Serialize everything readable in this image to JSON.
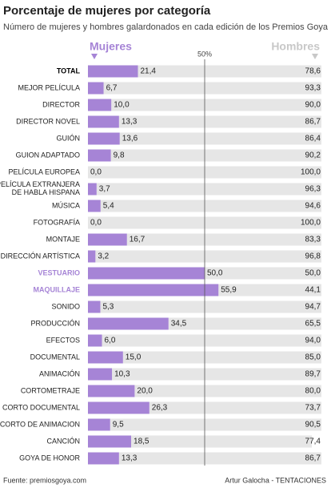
{
  "chart_data": {
    "type": "stacked-bar-horizontal",
    "title": "Porcentaje de mujeres por categoría",
    "subtitle": "Número de mujeres y hombres galardonados en cada edición de los Premios Goya",
    "source": "Fuente: premiosgoya.com",
    "credit": "Artur Galocha - TENTACIONES",
    "categories": [
      "TOTAL",
      "MEJOR PELÍCULA",
      "DIRECTOR",
      "DIRECTOR NOVEL",
      "GUIÓN",
      "GUION ADAPTADO",
      "PELÍCULA EUROPEA",
      "PELÍCULA EXTRANJERA DE HABLA HISPANA",
      "MÚSICA",
      "FOTOGRAFÍA",
      "MONTAJE",
      "DIRECCIÓN ARTÍSTICA",
      "VESTUARIO",
      "MAQUILLAJE",
      "SONIDO",
      "PRODUCCIÓN",
      "EFECTOS",
      "DOCUMENTAL",
      "ANIMACIÓN",
      "CORTOMETRAJE",
      "CORTO DOCUMENTAL",
      "CORTO DE ANIMACION",
      "CANCIÓN",
      "GOYA DE HONOR"
    ],
    "series": [
      {
        "name": "Mujeres",
        "color": "#a684d6",
        "values": [
          21.4,
          6.7,
          10.0,
          13.3,
          13.6,
          9.8,
          0.0,
          3.7,
          5.4,
          0.0,
          16.7,
          3.2,
          50.0,
          55.9,
          5.3,
          34.5,
          6.0,
          15.0,
          10.3,
          20.0,
          26.3,
          9.5,
          18.5,
          13.3
        ],
        "value_labels": [
          "21,4",
          "6,7",
          "10,0",
          "13,3",
          "13,6",
          "9,8",
          "0,0",
          "3,7",
          "5,4",
          "0,0",
          "16,7",
          "3,2",
          "50,0",
          "55,9",
          "5,3",
          "34,5",
          "6,0",
          "15,0",
          "10,3",
          "20,0",
          "26,3",
          "9,5",
          "18,5",
          "13,3"
        ]
      },
      {
        "name": "Hombres",
        "color": "#e6e6e6",
        "values": [
          78.6,
          93.3,
          90.0,
          86.7,
          86.4,
          90.2,
          100.0,
          96.3,
          94.6,
          100.0,
          83.3,
          96.8,
          50.0,
          44.1,
          94.7,
          65.5,
          94.0,
          85.0,
          89.7,
          80.0,
          73.7,
          90.5,
          77.4,
          86.7
        ],
        "value_labels": [
          "78,6",
          "93,3",
          "90,0",
          "86,7",
          "86,4",
          "90,2",
          "100,0",
          "96,3",
          "94,6",
          "100,0",
          "83,3",
          "96,8",
          "50,0",
          "44,1",
          "94,7",
          "65,5",
          "94,0",
          "85,0",
          "89,7",
          "80,0",
          "73,7",
          "90,5",
          "77,4",
          "86,7"
        ]
      }
    ],
    "xlim": [
      0,
      100
    ],
    "xticks": [
      {
        "value": 50,
        "label": "50%"
      }
    ]
  }
}
